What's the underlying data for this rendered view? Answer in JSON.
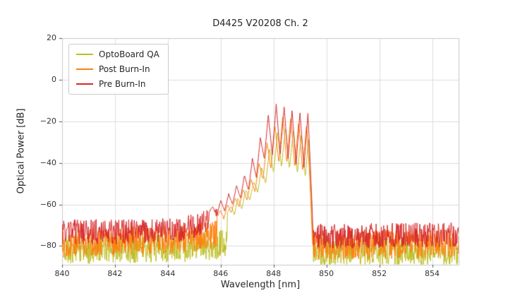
{
  "chart_data": {
    "type": "line",
    "title": "D4425 V20208 Ch. 2",
    "xlabel": "Wavelength [nm]",
    "ylabel": "Optical Power [dB]",
    "xlim": [
      840,
      855
    ],
    "ylim": [
      -89,
      20
    ],
    "xticks": [
      840,
      842,
      844,
      846,
      848,
      850,
      852,
      854
    ],
    "yticks": [
      20,
      0,
      -20,
      -40,
      -60,
      -80
    ],
    "grid": true,
    "grid_color": "#dcdcdc",
    "frame_color": "#c9c9c9",
    "legend_position": "upper left",
    "series": [
      {
        "name": "OptoBoard QA",
        "color": "#bcbd22",
        "seed": 11,
        "noise": {
          "amp": 7,
          "points": [
            [
              840,
              -80
            ],
            [
              844.8,
              -79
            ],
            [
              846.5,
              -77
            ],
            [
              849.6,
              -81
            ],
            [
              855,
              -81
            ]
          ]
        },
        "points": [
          [
            846.25,
            -64
          ],
          [
            846.4,
            -61
          ],
          [
            846.52,
            -65
          ],
          [
            846.65,
            -57
          ],
          [
            846.8,
            -62
          ],
          [
            846.95,
            -53
          ],
          [
            847.1,
            -58
          ],
          [
            847.25,
            -49
          ],
          [
            847.4,
            -54
          ],
          [
            847.55,
            -42
          ],
          [
            847.7,
            -50
          ],
          [
            847.85,
            -33
          ],
          [
            848.0,
            -45
          ],
          [
            848.15,
            -25
          ],
          [
            848.3,
            -42
          ],
          [
            848.45,
            -23
          ],
          [
            848.6,
            -43
          ],
          [
            848.75,
            -24
          ],
          [
            848.9,
            -45
          ],
          [
            849.05,
            -26
          ],
          [
            849.2,
            -47
          ],
          [
            849.32,
            -28
          ],
          [
            849.42,
            -55
          ],
          [
            849.5,
            -82
          ]
        ]
      },
      {
        "name": "Post Burn-In",
        "color": "#ff7f0e",
        "seed": 22,
        "noise": {
          "amp": 7,
          "points": [
            [
              840,
              -77
            ],
            [
              844.8,
              -75
            ],
            [
              846.2,
              -72
            ],
            [
              849.6,
              -78
            ],
            [
              855,
              -77
            ]
          ]
        },
        "points": [
          [
            845.85,
            -66
          ],
          [
            846.0,
            -63
          ],
          [
            846.12,
            -67
          ],
          [
            846.25,
            -60
          ],
          [
            846.4,
            -64
          ],
          [
            846.55,
            -57
          ],
          [
            846.7,
            -61
          ],
          [
            846.85,
            -53
          ],
          [
            847.0,
            -58
          ],
          [
            847.15,
            -48
          ],
          [
            847.3,
            -54
          ],
          [
            847.45,
            -40
          ],
          [
            847.6,
            -48
          ],
          [
            847.75,
            -30
          ],
          [
            847.9,
            -43
          ],
          [
            848.05,
            -22
          ],
          [
            848.2,
            -40
          ],
          [
            848.35,
            -17
          ],
          [
            848.5,
            -40
          ],
          [
            848.65,
            -18
          ],
          [
            848.8,
            -42
          ],
          [
            848.95,
            -20
          ],
          [
            849.1,
            -44
          ],
          [
            849.25,
            -21
          ],
          [
            849.38,
            -50
          ],
          [
            849.47,
            -78
          ]
        ]
      },
      {
        "name": "Pre Burn-In",
        "color": "#d62728",
        "seed": 33,
        "noise": {
          "amp": 6,
          "points": [
            [
              840,
              -72
            ],
            [
              844.5,
              -71
            ],
            [
              845.6,
              -66
            ],
            [
              846.5,
              -66
            ],
            [
              849.6,
              -74
            ],
            [
              855,
              -73
            ]
          ]
        },
        "points": [
          [
            845.55,
            -64
          ],
          [
            845.7,
            -61
          ],
          [
            845.85,
            -66
          ],
          [
            846.0,
            -58
          ],
          [
            846.15,
            -63
          ],
          [
            846.3,
            -55
          ],
          [
            846.45,
            -60
          ],
          [
            846.6,
            -51
          ],
          [
            846.75,
            -57
          ],
          [
            846.9,
            -46
          ],
          [
            847.05,
            -53
          ],
          [
            847.2,
            -38
          ],
          [
            847.35,
            -47
          ],
          [
            847.5,
            -28
          ],
          [
            847.65,
            -38
          ],
          [
            847.8,
            -17
          ],
          [
            847.95,
            -36
          ],
          [
            848.1,
            -12
          ],
          [
            848.25,
            -36
          ],
          [
            848.4,
            -13
          ],
          [
            848.55,
            -38
          ],
          [
            848.7,
            -15
          ],
          [
            848.85,
            -41
          ],
          [
            849.0,
            -16
          ],
          [
            849.15,
            -42
          ],
          [
            849.3,
            -16
          ],
          [
            849.42,
            -50
          ],
          [
            849.5,
            -75
          ]
        ]
      }
    ]
  }
}
